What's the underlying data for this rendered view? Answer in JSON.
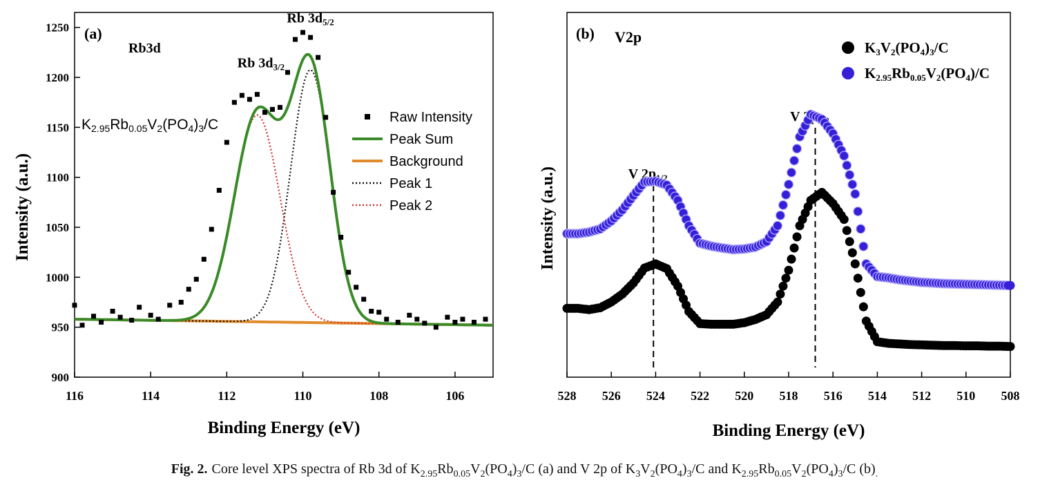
{
  "caption": {
    "label": "Fig. 2.",
    "text": "Core level XPS spectra of Rb 3d of K2.95Rb0.05V2(PO4)3/C (a) and V 2p of K3V2(PO4)3/C and K2.95Rb0.05V2(PO4)3/C (b)."
  },
  "chart_data": [
    {
      "type": "scatter",
      "panel_label": "(a)",
      "title": "Rb3d",
      "sample": "K2.95Rb0.05V2(PO4)3/C",
      "xlabel": "Binding Energy (eV)",
      "ylabel": "Intensity (a.u.)",
      "xlim": [
        116,
        105
      ],
      "ylim": [
        900,
        1265
      ],
      "x_reversed": true,
      "xticks": [
        116,
        114,
        112,
        110,
        108,
        106
      ],
      "yticks": [
        900,
        950,
        1000,
        1050,
        1100,
        1150,
        1200,
        1250
      ],
      "legend_position": "top-right",
      "annotations": [
        {
          "text": "Rb 3d",
          "sub": "3/2",
          "x": 111.1,
          "y": 1210
        },
        {
          "text": "Rb 3d",
          "sub": "5/2",
          "x": 109.8,
          "y": 1255
        }
      ],
      "series": [
        {
          "name": "Raw Intensity",
          "kind": "points",
          "color": "#000000",
          "x": [
            116.0,
            115.8,
            115.5,
            115.3,
            115.0,
            114.8,
            114.5,
            114.3,
            114.0,
            113.8,
            113.5,
            113.2,
            113.0,
            112.8,
            112.6,
            112.4,
            112.2,
            112.0,
            111.8,
            111.6,
            111.4,
            111.2,
            111.0,
            110.8,
            110.6,
            110.4,
            110.2,
            110.0,
            109.8,
            109.6,
            109.4,
            109.2,
            109.0,
            108.8,
            108.6,
            108.4,
            108.2,
            108.0,
            107.8,
            107.5,
            107.2,
            107.0,
            106.8,
            106.5,
            106.2,
            106.0,
            105.8,
            105.5,
            105.2
          ],
          "y": [
            972,
            952,
            961,
            955,
            966,
            960,
            957,
            970,
            962,
            958,
            972,
            975,
            988,
            998,
            1018,
            1048,
            1087,
            1135,
            1175,
            1182,
            1178,
            1183,
            1165,
            1168,
            1170,
            1205,
            1238,
            1245,
            1240,
            1220,
            1160,
            1085,
            1040,
            1005,
            990,
            978,
            966,
            965,
            958,
            955,
            962,
            958,
            954,
            950,
            960,
            955,
            958,
            955,
            958
          ]
        },
        {
          "name": "Peak Sum",
          "kind": "line",
          "color": "#3a8a28",
          "width": 4,
          "model": "sum"
        },
        {
          "name": "Background",
          "kind": "line",
          "color": "#e08a2a",
          "width": 4,
          "y_start": 958,
          "y_end": 952
        },
        {
          "name": "Peak 1",
          "kind": "dotted",
          "color": "#111111",
          "center": 109.8,
          "amplitude": 253,
          "sigma": 0.52
        },
        {
          "name": "Peak 2",
          "kind": "dotted",
          "color": "#d03030",
          "center": 111.2,
          "amplitude": 207,
          "sigma": 0.6
        }
      ]
    },
    {
      "type": "scatter",
      "panel_label": "(b)",
      "title": "V2p",
      "xlabel": "Binding Energy (eV)",
      "ylabel": "Intensity (a.u.)",
      "xlim": [
        528,
        508
      ],
      "ylim": [
        0,
        100
      ],
      "x_reversed": true,
      "xticks": [
        528,
        526,
        524,
        522,
        520,
        518,
        516,
        514,
        512,
        510,
        508
      ],
      "legend_position": "top-right",
      "annotations": [
        {
          "text": "V 2p",
          "sub": "1/2",
          "x": 524.1,
          "line_x": 524.1
        },
        {
          "text": "V 2p",
          "sub": "3/2",
          "x": 516.8,
          "line_x": 516.8
        }
      ],
      "series": [
        {
          "name": "K3V2(PO4)3/C",
          "color": "#000000",
          "x": [
            528,
            527.5,
            527,
            526.5,
            526,
            525.5,
            525,
            524.5,
            524,
            523.5,
            523,
            522.5,
            522,
            521.5,
            521,
            520.5,
            520,
            519.5,
            519,
            518.5,
            518,
            517.5,
            517,
            516.5,
            516,
            515.5,
            515,
            514.5,
            514,
            513.5,
            513,
            512.5,
            512,
            511.5,
            511,
            510.5,
            510,
            509.5,
            509,
            508.5,
            508
          ],
          "y": [
            16,
            16,
            15.6,
            16.2,
            18,
            20.5,
            24,
            28.7,
            30,
            28.5,
            23,
            15,
            11.2,
            11,
            11,
            11,
            11.5,
            12.5,
            14,
            18,
            28,
            42,
            50,
            52.5,
            49,
            44,
            30,
            12,
            5.5,
            5,
            4.8,
            4.6,
            4.5,
            4.4,
            4.3,
            4.3,
            4.2,
            4.2,
            4.1,
            4.1,
            4
          ]
        },
        {
          "name": "K2.95Rb0.05V2(PO4)/C",
          "color": "#3520d8",
          "x": [
            528,
            527.5,
            527,
            526.5,
            526,
            525.5,
            525,
            524.5,
            524,
            523.5,
            523,
            522.5,
            522,
            521.5,
            521,
            520.5,
            520,
            519.5,
            519,
            518.5,
            518,
            517.5,
            517,
            516.5,
            516,
            515.5,
            515,
            514.5,
            514,
            513.5,
            513,
            512.5,
            512,
            511.5,
            511,
            510.5,
            510,
            509.5,
            509,
            508.5,
            508
          ],
          "y": [
            39.5,
            39.5,
            40,
            41,
            43.5,
            47,
            51.5,
            55.8,
            56,
            54.8,
            50,
            42,
            36.5,
            35.6,
            35,
            34.5,
            34.7,
            35.3,
            37,
            42,
            55,
            70,
            77,
            75.5,
            71,
            64,
            52,
            30,
            26,
            25.6,
            25,
            24.6,
            24.2,
            24,
            23.8,
            23.7,
            23.6,
            23.5,
            23.4,
            23.3,
            23.2
          ]
        }
      ]
    }
  ]
}
